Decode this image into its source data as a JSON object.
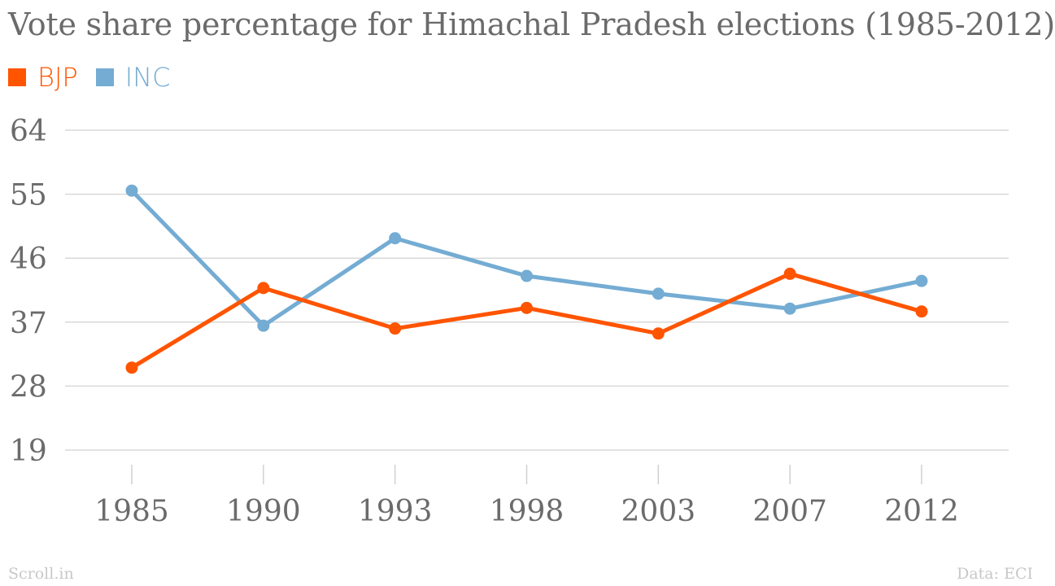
{
  "chart_data": {
    "type": "line",
    "title": "Vote share percentage for Himachal Pradesh elections (1985-2012)",
    "categories": [
      "1985",
      "1990",
      "1993",
      "1998",
      "2003",
      "2007",
      "2012"
    ],
    "series": [
      {
        "name": "BJP",
        "color": "#ff5400",
        "values": [
          30.6,
          41.8,
          36.1,
          39.0,
          35.4,
          43.8,
          38.5
        ]
      },
      {
        "name": "INC",
        "color": "#74acd3",
        "values": [
          55.5,
          36.5,
          48.8,
          43.5,
          41.0,
          38.9,
          42.8
        ]
      }
    ],
    "yticks": [
      19,
      28,
      37,
      46,
      55,
      64
    ],
    "ylim": [
      19,
      64
    ],
    "grid": true,
    "legend": "top-left"
  },
  "footer": {
    "source_left": "Scroll.in",
    "source_right": "Data: ECI"
  }
}
